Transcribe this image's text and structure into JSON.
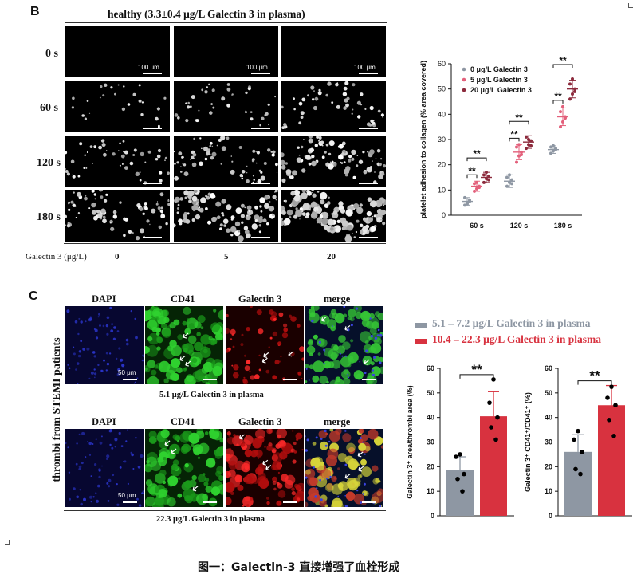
{
  "panel_b": {
    "letter": "B",
    "title": "healthy (3.3±0.4 μg/L Galectin 3 in plasma)",
    "time_rows": [
      "0 s",
      "60 s",
      "120 s",
      "180 s"
    ],
    "concentration_label": "Galectin 3 (μg/L)",
    "concentrations": [
      "0",
      "5",
      "20"
    ],
    "scale_label": "100 μm"
  },
  "panel_c": {
    "letter": "C",
    "side_label": "thrombi from STEMI patients",
    "channels": [
      "DAPI",
      "CD41",
      "Galectin 3",
      "merge"
    ],
    "scale_label": "50 μm",
    "caption_top": "5.1 μg/L Galectin 3 in plasma",
    "caption_bottom": "22.3 μg/L Galectin 3 in plasma",
    "legend": [
      {
        "label": "5.1 – 7.2 μg/L Galectin 3 in plasma",
        "color": "#8e97a3"
      },
      {
        "label": "10.4 – 22.3 μg/L Galectin 3 in plasma",
        "color": "#d8323f"
      }
    ]
  },
  "figure_caption": "图一：Galectin-3 直接增强了血栓形成",
  "chart_data": [
    {
      "type": "scatter",
      "ylabel": "platelet adhesion to collagen (% area covered)",
      "ylim": [
        0,
        60
      ],
      "yticks": [
        0,
        10,
        20,
        30,
        40,
        50,
        60
      ],
      "categories": [
        "60 s",
        "120 s",
        "180 s"
      ],
      "legend_position": "top-left",
      "significance": "**",
      "series": [
        {
          "name": "0 μg/L Galectin 3",
          "color": "#8e97a3",
          "means": [
            5.5,
            13.5,
            26
          ],
          "sd": [
            1.5,
            2.5,
            1.5
          ],
          "points": [
            [
              4,
              5,
              6,
              7,
              4.5,
              5.5
            ],
            [
              11.5,
              13,
              14,
              15,
              16,
              12.5
            ],
            [
              24.5,
              25.5,
              26,
              27,
              27.5,
              26.5
            ]
          ]
        },
        {
          "name": "5 μg/L Galectin 3",
          "color": "#e3607b",
          "means": [
            11.5,
            25,
            39
          ],
          "sd": [
            2,
            3,
            3.5
          ],
          "points": [
            [
              9.5,
              10.5,
              11.5,
              12.5,
              13,
              11
            ],
            [
              21,
              23.5,
              25,
              27,
              28,
              24
            ],
            [
              35,
              37,
              39,
              41,
              43,
              38.5
            ]
          ]
        },
        {
          "name": "20 μg/L Galectin 3",
          "color": "#8c2a3c",
          "means": [
            15,
            29,
            50
          ],
          "sd": [
            2,
            2.5,
            3.5
          ],
          "points": [
            [
              13,
              14.5,
              15.5,
              16,
              17,
              14
            ],
            [
              26.5,
              28,
              29.5,
              31,
              30,
              27.5
            ],
            [
              46,
              48,
              50,
              52,
              54,
              49
            ]
          ]
        }
      ]
    },
    {
      "type": "bar",
      "ylabel": "Galectin 3⁺ area/thrombi area (%)",
      "ylim": [
        0,
        60
      ],
      "yticks": [
        0,
        10,
        20,
        30,
        40,
        50,
        60
      ],
      "significance": "**",
      "series": [
        {
          "name": "5.1 – 7.2 μg/L Galectin 3 in plasma",
          "color": "#8e97a3",
          "value": 18.5,
          "sd": 5.5,
          "points": [
            25,
            24,
            17,
            15,
            10
          ]
        },
        {
          "name": "10.4 – 22.3 μg/L Galectin 3 in plasma",
          "color": "#d8323f",
          "value": 40.5,
          "sd": 10,
          "points": [
            55.5,
            46,
            40,
            36,
            31
          ]
        }
      ]
    },
    {
      "type": "bar",
      "ylabel": "Galectin 3⁺ CD41⁺/CD41⁺ (%)",
      "ylim": [
        0,
        60
      ],
      "yticks": [
        0,
        10,
        20,
        30,
        40,
        50,
        60
      ],
      "significance": "**",
      "series": [
        {
          "name": "5.1 – 7.2 μg/L Galectin 3 in plasma",
          "color": "#8e97a3",
          "value": 26,
          "sd": 7,
          "points": [
            34.5,
            31,
            26,
            19,
            17
          ]
        },
        {
          "name": "10.4 – 22.3 μg/L Galectin 3 in plasma",
          "color": "#d8323f",
          "value": 45,
          "sd": 8,
          "points": [
            52.5,
            48,
            45,
            39,
            32.5
          ]
        }
      ]
    }
  ]
}
